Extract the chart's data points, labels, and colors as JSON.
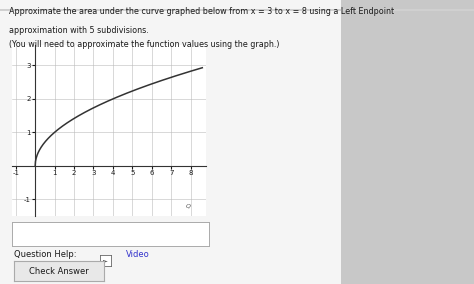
{
  "title_line1": "Approximate the area under the curve graphed below from x = 3 to x = 8 using a Left Endpoint",
  "title_line2": "approximation with 5 subdivisions.",
  "title_line3": "(You will need to approximate the function values using the graph.)",
  "bg_color": "#e8e8e8",
  "plot_bg": "#ffffff",
  "graph_xlim": [
    -1.2,
    8.8
  ],
  "graph_ylim": [
    -1.5,
    3.6
  ],
  "x_ticks": [
    -1,
    1,
    2,
    3,
    4,
    5,
    6,
    7,
    8
  ],
  "y_ticks": [
    -1,
    1,
    2,
    3
  ],
  "curve_color": "#333333",
  "grid_color": "#bbbbbb",
  "input_box_color": "#ffffff",
  "question_help_color": "#3333cc",
  "check_answer_bg": "#e8e8e8",
  "text_color": "#1a1a1a",
  "content_bg": "#f2f2f2"
}
